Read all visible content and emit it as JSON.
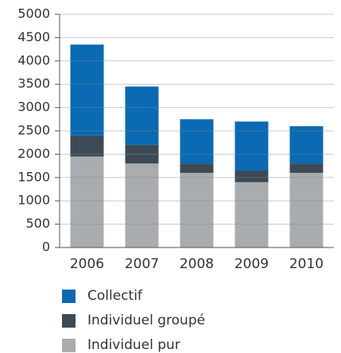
{
  "chart_data": {
    "type": "stacked-bar",
    "categories": [
      "2006",
      "2007",
      "2008",
      "2009",
      "2010"
    ],
    "series": [
      {
        "name": "Individuel pur",
        "color": "#a9acae",
        "values": [
          1950,
          1800,
          1600,
          1400,
          1600
        ]
      },
      {
        "name": "Individuel groupé",
        "color": "#3c4a55",
        "values": [
          450,
          400,
          200,
          250,
          200
        ]
      },
      {
        "name": "Collectif",
        "color": "#0a6ab3",
        "values": [
          1950,
          1250,
          950,
          1050,
          800
        ]
      }
    ],
    "ylim": [
      0,
      5000
    ],
    "yticks": [
      0,
      500,
      1000,
      1500,
      2000,
      2500,
      3000,
      3500,
      4000,
      4500,
      5000
    ],
    "grid": true
  }
}
